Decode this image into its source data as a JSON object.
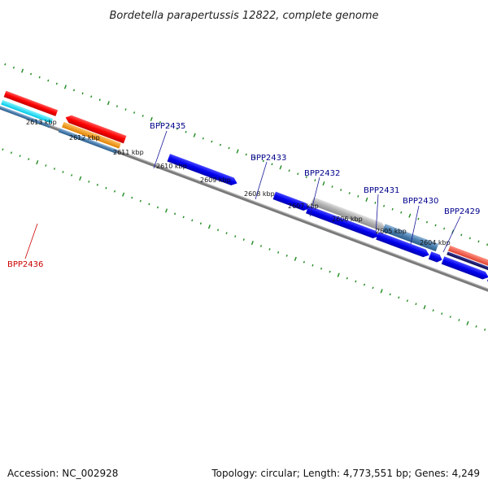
{
  "title": "Bordetella parapertussis 12822, complete genome",
  "footer": {
    "accession": "Accession: NC_002928",
    "summary": "Topology: circular; Length: 4,773,551 bp; Genes: 4,249"
  },
  "ticks": [
    {
      "label": "2613 kbp",
      "kbp": 2613
    },
    {
      "label": "2612 kbp",
      "kbp": 2612
    },
    {
      "label": "2611 kbp",
      "kbp": 2611
    },
    {
      "label": "2610 kbp",
      "kbp": 2610
    },
    {
      "label": "2609 kbp",
      "kbp": 2609
    },
    {
      "label": "2608 kbp",
      "kbp": 2608
    },
    {
      "label": "2607 kbp",
      "kbp": 2607
    },
    {
      "label": "2606 kbp",
      "kbp": 2606
    },
    {
      "label": "2605 kbp",
      "kbp": 2605
    },
    {
      "label": "2604 kbp",
      "kbp": 2604
    }
  ],
  "gene_labels": [
    {
      "id": "BPP2436",
      "color": "#cc0000"
    },
    {
      "id": "BPP2435",
      "color": "#00008b"
    },
    {
      "id": "BPP2433",
      "color": "#00008b"
    },
    {
      "id": "BPP2432",
      "color": "#00008b"
    },
    {
      "id": "BPP2431",
      "color": "#00008b"
    },
    {
      "id": "BPP2430",
      "color": "#00008b"
    },
    {
      "id": "BPP2429",
      "color": "#00008b"
    }
  ],
  "colors": {
    "backbone": "#808080",
    "tick": "#1e8a1e",
    "cds": "#0000e6",
    "rrna_red": "#ff0000",
    "orange": "#ff9a00",
    "steel": "#4a7fb0",
    "cyan": "#00e0ff",
    "grey_feature": "#b0b0b0",
    "salmon": "#f06050",
    "navy": "#1a1a6e"
  }
}
